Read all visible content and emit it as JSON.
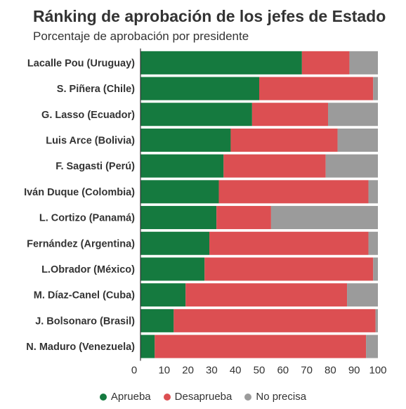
{
  "title": "Ránking de aprobación de los jefes de Estado",
  "subtitle": "Porcentaje de aprobación por presidente",
  "colors": {
    "aprueba": "#157a3f",
    "desaprueba": "#dc4f52",
    "no_precisa": "#9b9b9b",
    "text": "#333333"
  },
  "chart_data": {
    "type": "bar",
    "orientation": "horizontal",
    "stacked": true,
    "categories": [
      "Lacalle Pou (Uruguay)",
      "S. Piñera (Chile)",
      "G. Lasso (Ecuador)",
      "Luis Arce (Bolivia)",
      "F. Sagasti (Perú)",
      "Iván Duque (Colombia)",
      "L. Cortizo (Panamá)",
      "Fernández (Argentina)",
      "L.Obrador (México)",
      "M. Díaz-Canel (Cuba)",
      "J. Bolsonaro (Brasil)",
      "N. Maduro (Venezuela)"
    ],
    "series": [
      {
        "name": "Aprueba",
        "values": [
          68,
          50,
          47,
          38,
          35,
          33,
          32,
          29,
          27,
          19,
          14,
          6
        ]
      },
      {
        "name": "Desaprueba",
        "values": [
          20,
          48,
          32,
          45,
          43,
          63,
          23,
          67,
          71,
          68,
          85,
          89
        ]
      },
      {
        "name": "No precisa",
        "values": [
          12,
          2,
          21,
          17,
          22,
          4,
          45,
          4,
          2,
          13,
          1,
          5
        ]
      }
    ],
    "x_ticks": [
      "0",
      "10",
      "20",
      "30",
      "40",
      "50",
      "60",
      "70",
      "80",
      "90",
      "100"
    ],
    "xlim": [
      0,
      100
    ],
    "grid": false,
    "legend_position": "bottom"
  }
}
